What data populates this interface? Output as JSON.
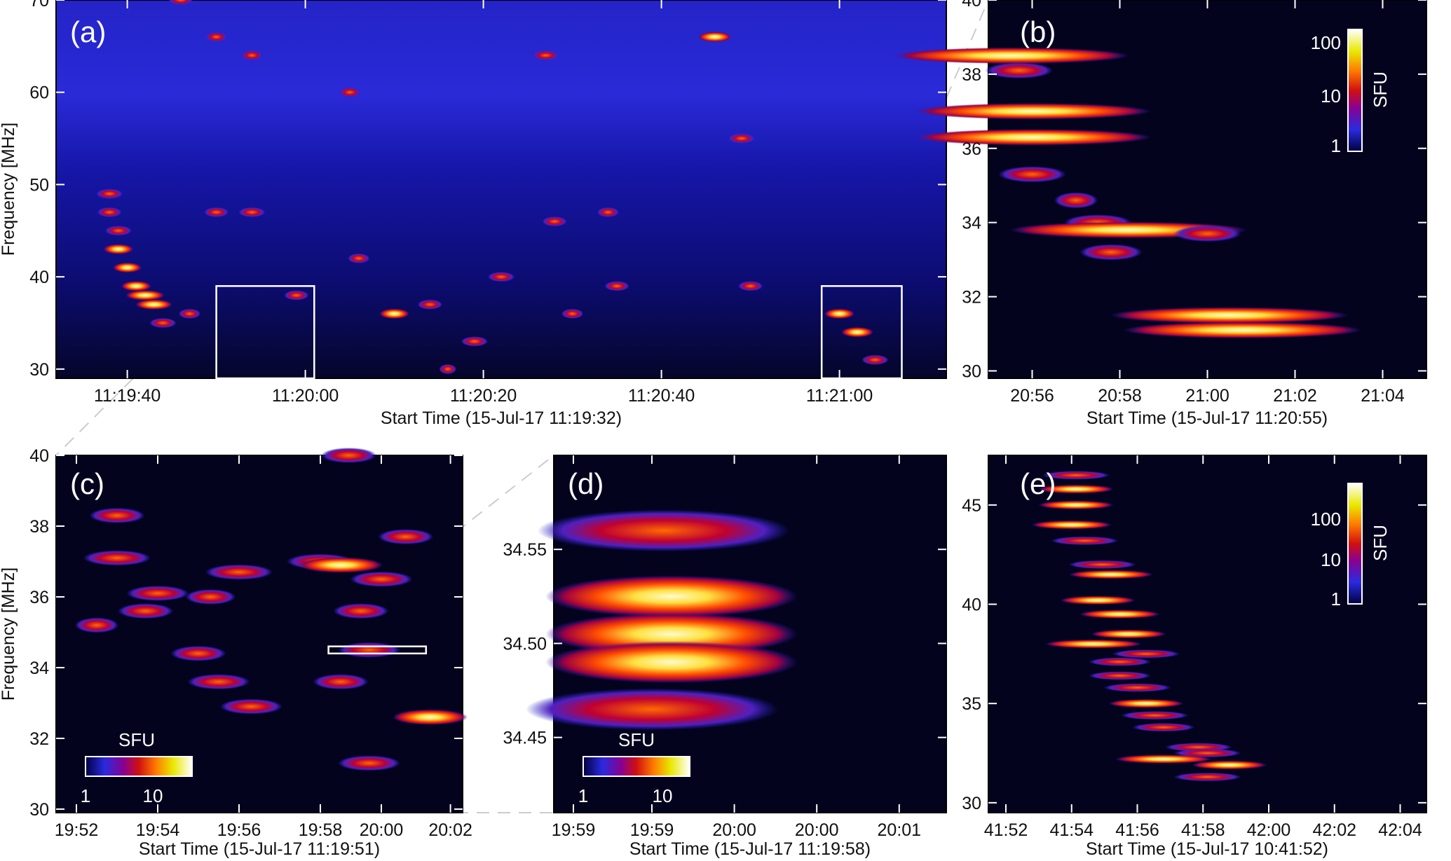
{
  "panels": [
    {
      "id": "a",
      "label": "(a)",
      "xlabel": "Start Time (15-Jul-17 11:19:32)",
      "ylabel": "Frequency [MHz]",
      "xlim": [
        0,
        100
      ],
      "ylim": [
        29,
        70
      ],
      "xticks": [
        {
          "v": 8,
          "label": "11:19:40"
        },
        {
          "v": 28,
          "label": "11:20:00"
        },
        {
          "v": 48,
          "label": "11:20:20"
        },
        {
          "v": 68,
          "label": "11:20:40"
        },
        {
          "v": 88,
          "label": "11:21:00"
        }
      ],
      "yticks": [
        {
          "v": 30,
          "label": "30"
        },
        {
          "v": 40,
          "label": "40"
        },
        {
          "v": 50,
          "label": "50"
        },
        {
          "v": 60,
          "label": "60"
        },
        {
          "v": 70,
          "label": "70"
        }
      ],
      "boxes": [
        {
          "x0": 18,
          "x1": 29,
          "y0": 29,
          "y1": 39
        },
        {
          "x0": 86,
          "x1": 95,
          "y0": 29,
          "y1": 39
        }
      ]
    },
    {
      "id": "b",
      "label": "(b)",
      "xlabel": "Start Time (15-Jul-17 11:20:55)",
      "ylabel": "",
      "xlim": [
        0,
        100
      ],
      "ylim": [
        29.8,
        40
      ],
      "xticks": [
        {
          "v": 10,
          "label": "20:56"
        },
        {
          "v": 30,
          "label": "20:58"
        },
        {
          "v": 50,
          "label": "21:00"
        },
        {
          "v": 70,
          "label": "21:02"
        },
        {
          "v": 90,
          "label": "21:04"
        }
      ],
      "yticks": [
        {
          "v": 30,
          "label": "30"
        },
        {
          "v": 32,
          "label": "32"
        },
        {
          "v": 34,
          "label": "34"
        },
        {
          "v": 36,
          "label": "36"
        },
        {
          "v": 38,
          "label": "38"
        },
        {
          "v": 40,
          "label": "40"
        }
      ],
      "colorbar": {
        "title": "SFU",
        "ticks": [
          "1",
          "10",
          "100"
        ]
      }
    },
    {
      "id": "c",
      "label": "(c)",
      "xlabel": "Start Time (15-Jul-17 11:19:51)",
      "ylabel": "Frequency [MHz]",
      "xlim": [
        0,
        100
      ],
      "ylim": [
        29.9,
        40
      ],
      "xticks": [
        {
          "v": 5,
          "label": "19:52"
        },
        {
          "v": 25,
          "label": "19:54"
        },
        {
          "v": 45,
          "label": "19:56"
        },
        {
          "v": 65,
          "label": "19:58"
        },
        {
          "v": 80,
          "label": "20:00"
        },
        {
          "v": 97,
          "label": "20:02"
        }
      ],
      "yticks": [
        {
          "v": 30,
          "label": "30"
        },
        {
          "v": 32,
          "label": "32"
        },
        {
          "v": 34,
          "label": "34"
        },
        {
          "v": 36,
          "label": "36"
        },
        {
          "v": 38,
          "label": "38"
        },
        {
          "v": 40,
          "label": "40"
        }
      ],
      "boxes": [
        {
          "x0": 67,
          "x1": 91,
          "y0": 34.4,
          "y1": 34.6
        }
      ],
      "colorbar": {
        "title": "SFU",
        "ticks": [
          "1",
          "10"
        ]
      }
    },
    {
      "id": "d",
      "label": "(d)",
      "xlabel": "Start Time (15-Jul-17 11:19:58)",
      "ylabel": "",
      "xlim": [
        0,
        100
      ],
      "ylim": [
        34.41,
        34.6
      ],
      "xticks": [
        {
          "v": 5,
          "label": "19:59"
        },
        {
          "v": 25,
          "label": "19:59"
        },
        {
          "v": 46,
          "label": "20:00"
        },
        {
          "v": 67,
          "label": "20:00"
        },
        {
          "v": 88,
          "label": "20:01"
        }
      ],
      "yticks": [
        {
          "v": 34.45,
          "label": "34.45"
        },
        {
          "v": 34.5,
          "label": "34.50"
        },
        {
          "v": 34.55,
          "label": "34.55"
        }
      ],
      "colorbar": {
        "title": "SFU",
        "ticks": [
          "1",
          "10"
        ]
      }
    },
    {
      "id": "e",
      "label": "(e)",
      "xlabel": "Start Time (15-Jul-17 10:41:52)",
      "ylabel": "",
      "xlim": [
        0,
        100
      ],
      "ylim": [
        29.5,
        47.5
      ],
      "xticks": [
        {
          "v": 4,
          "label": "41:52"
        },
        {
          "v": 19,
          "label": "41:54"
        },
        {
          "v": 34,
          "label": "41:56"
        },
        {
          "v": 49,
          "label": "41:58"
        },
        {
          "v": 64,
          "label": "42:00"
        },
        {
          "v": 79,
          "label": "42:02"
        },
        {
          "v": 94,
          "label": "42:04"
        }
      ],
      "yticks": [
        {
          "v": 30,
          "label": "30"
        },
        {
          "v": 35,
          "label": "35"
        },
        {
          "v": 40,
          "label": "40"
        },
        {
          "v": 45,
          "label": "45"
        }
      ],
      "colorbar": {
        "title": "SFU",
        "ticks": [
          "1",
          "10",
          "100"
        ]
      }
    }
  ],
  "colors": {
    "background": "#05051e",
    "colormap": [
      "#0a0a6e",
      "#2a2ad8",
      "#b00020",
      "#ff2a00",
      "#ff9a00",
      "#f6ff33",
      "#ffffff"
    ]
  },
  "chart_data": {
    "type": "heatmap",
    "description_units": "time (% of panel time span), frequency (MHz), intensity (SFU)",
    "bursts": {
      "a": [
        [
          6,
          49,
          40
        ],
        [
          6,
          47,
          30
        ],
        [
          7,
          45,
          40
        ],
        [
          7,
          43,
          60
        ],
        [
          8,
          41,
          50
        ],
        [
          9,
          39,
          60
        ],
        [
          10,
          38,
          200
        ],
        [
          11,
          37,
          150
        ],
        [
          12,
          35,
          40
        ],
        [
          15,
          36,
          20
        ],
        [
          18,
          47,
          30
        ],
        [
          22,
          47,
          40
        ],
        [
          27,
          38,
          30
        ],
        [
          34,
          42,
          20
        ],
        [
          38,
          36,
          60
        ],
        [
          42,
          37,
          30
        ],
        [
          44,
          30,
          10
        ],
        [
          47,
          33,
          40
        ],
        [
          50,
          40,
          40
        ],
        [
          58,
          36,
          20
        ],
        [
          55,
          64,
          40
        ],
        [
          63,
          39,
          30
        ],
        [
          74,
          66,
          100
        ],
        [
          77,
          55,
          40
        ],
        [
          78,
          39,
          30
        ],
        [
          88,
          36,
          60
        ],
        [
          90,
          34,
          80
        ],
        [
          92,
          31,
          40
        ],
        [
          18,
          66,
          20
        ],
        [
          22,
          64,
          20
        ],
        [
          33,
          60,
          20
        ],
        [
          56,
          46,
          30
        ],
        [
          62,
          47,
          20
        ],
        [
          14,
          70,
          30
        ]
      ],
      "b": [
        [
          5,
          38.5,
          80
        ],
        [
          7,
          38.1,
          40
        ],
        [
          10,
          37,
          100
        ],
        [
          10,
          36.3,
          120
        ],
        [
          10,
          35.3,
          40
        ],
        [
          25,
          34,
          40
        ],
        [
          32,
          33.8,
          150
        ],
        [
          50,
          33.7,
          40
        ],
        [
          28,
          33.2,
          30
        ],
        [
          55,
          31.5,
          60
        ],
        [
          58,
          31.1,
          60
        ],
        [
          20,
          34.6,
          10
        ]
      ],
      "c": [
        [
          15,
          38.3,
          20
        ],
        [
          15,
          37.1,
          40
        ],
        [
          25,
          36.1,
          30
        ],
        [
          38,
          36,
          15
        ],
        [
          45,
          36.7,
          40
        ],
        [
          65,
          37,
          40
        ],
        [
          70,
          36.9,
          100
        ],
        [
          80,
          36.5,
          30
        ],
        [
          86,
          37.7,
          20
        ],
        [
          75,
          35.6,
          20
        ],
        [
          35,
          34.4,
          20
        ],
        [
          40,
          33.6,
          30
        ],
        [
          48,
          32.9,
          30
        ],
        [
          70,
          33.6,
          20
        ],
        [
          77,
          34.5,
          30
        ],
        [
          92,
          32.6,
          60
        ],
        [
          77,
          31.3,
          30
        ],
        [
          72,
          40,
          20
        ],
        [
          10,
          35.2,
          10
        ],
        [
          22,
          35.6,
          20
        ]
      ],
      "d": [
        [
          30,
          34.525,
          60
        ],
        [
          30,
          34.505,
          120
        ],
        [
          30,
          34.49,
          80
        ],
        [
          28,
          34.56,
          20
        ],
        [
          25,
          34.465,
          15
        ]
      ],
      "e": [
        [
          20,
          46.5,
          40
        ],
        [
          20,
          45.8,
          60
        ],
        [
          20,
          45,
          60
        ],
        [
          19,
          44,
          80
        ],
        [
          22,
          43.2,
          40
        ],
        [
          26,
          42,
          40
        ],
        [
          28,
          41.5,
          100
        ],
        [
          25,
          40.2,
          60
        ],
        [
          30,
          39.5,
          80
        ],
        [
          32,
          38.5,
          60
        ],
        [
          24,
          38,
          200
        ],
        [
          36,
          37.5,
          40
        ],
        [
          30,
          37.1,
          30
        ],
        [
          30,
          36.4,
          30
        ],
        [
          34,
          35.8,
          40
        ],
        [
          36,
          35,
          60
        ],
        [
          38,
          34.4,
          40
        ],
        [
          40,
          33.8,
          30
        ],
        [
          48,
          32.8,
          40
        ],
        [
          50,
          32.5,
          40
        ],
        [
          40,
          32.2,
          200
        ],
        [
          55,
          31.9,
          60
        ],
        [
          50,
          31.3,
          40
        ]
      ]
    }
  }
}
